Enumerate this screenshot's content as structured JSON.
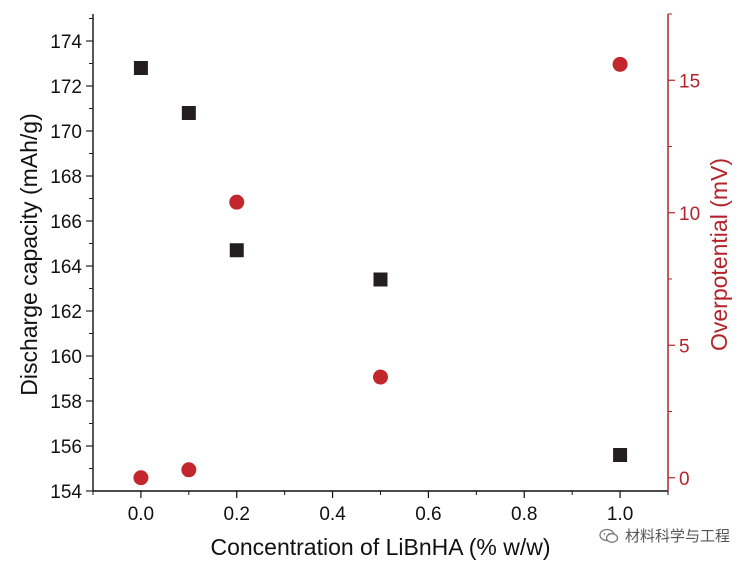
{
  "chart_data": {
    "type": "scatter",
    "xlabel": "Concentration of LiBnHA (% w/w)",
    "ylabel": "Discharge capacity (mAh/g)",
    "y2label": "Overpotential (mV)",
    "xlim": [
      -0.1,
      1.1
    ],
    "ylim": [
      154,
      175.2
    ],
    "y2lim": [
      -0.5,
      17.5
    ],
    "x_ticks": [
      "0.0",
      "0.2",
      "0.4",
      "0.6",
      "0.8",
      "1.0"
    ],
    "y_ticks": [
      "154",
      "156",
      "158",
      "160",
      "162",
      "164",
      "166",
      "168",
      "170",
      "172",
      "174"
    ],
    "y2_ticks": [
      "0",
      "5",
      "10",
      "15"
    ],
    "grid": false,
    "series": [
      {
        "axis": "left",
        "marker": "square",
        "color": "#231f20",
        "x": [
          0.0,
          0.1,
          0.2,
          0.5,
          1.0
        ],
        "y": [
          172.8,
          170.8,
          164.7,
          163.4,
          155.6
        ]
      },
      {
        "axis": "right",
        "marker": "circle",
        "color": "#c1272d",
        "x": [
          0.0,
          0.1,
          0.2,
          0.5,
          1.0
        ],
        "y": [
          0.0,
          0.3,
          10.4,
          3.8,
          15.6
        ]
      }
    ]
  },
  "colors": {
    "left_axis": "#231f20",
    "right_axis": "#b3242a"
  },
  "watermark": {
    "text": "材料科学与工程",
    "icon": "wechat-icon"
  }
}
